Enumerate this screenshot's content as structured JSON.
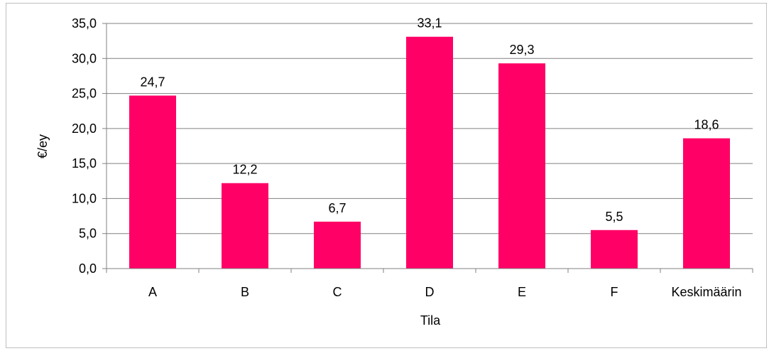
{
  "chart_data": {
    "type": "bar",
    "categories": [
      "A",
      "B",
      "C",
      "D",
      "E",
      "F",
      "Keskimäärin"
    ],
    "values": [
      24.7,
      12.2,
      6.7,
      33.1,
      29.3,
      5.5,
      18.6
    ],
    "data_labels": [
      "24,7",
      "12,2",
      "6,7",
      "33,1",
      "29,3",
      "5,5",
      "18,6"
    ],
    "xlabel": "Tila",
    "ylabel": "€/ey",
    "ylim": [
      0,
      35
    ],
    "yticks": [
      0,
      5,
      10,
      15,
      20,
      25,
      30,
      35
    ],
    "ytick_labels": [
      "0,0",
      "5,0",
      "10,0",
      "15,0",
      "20,0",
      "25,0",
      "30,0",
      "35,0"
    ],
    "grid": true,
    "legend": "none",
    "bar_color": "#ff0066",
    "grid_color": "#808080"
  }
}
